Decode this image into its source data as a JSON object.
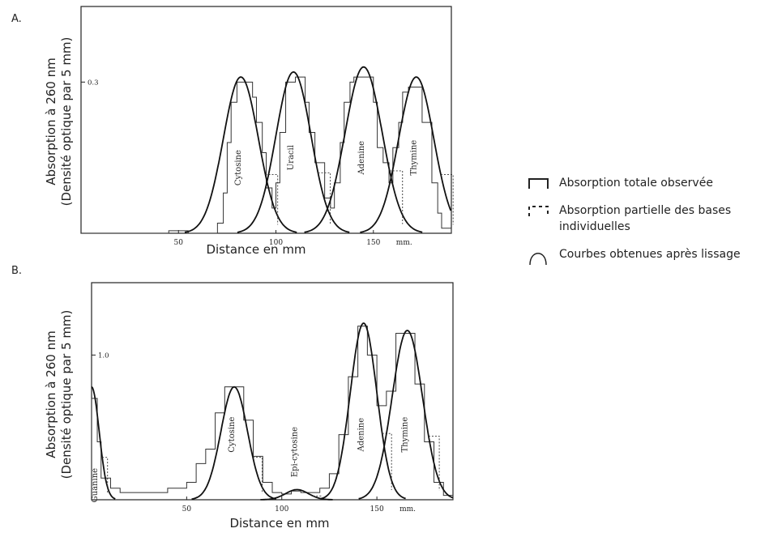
{
  "chart_data": [
    {
      "panel": "A.",
      "type": "line",
      "xlabel": "Distance en mm",
      "ylabel_line1": "Absorption à 260 nm",
      "ylabel_line2": "(Densité optique par 5 mm)",
      "xlim": [
        0,
        190
      ],
      "ylim": [
        0,
        0.45
      ],
      "xticks": [
        {
          "value": 50,
          "label": "50"
        },
        {
          "value": 100,
          "label": "100"
        },
        {
          "value": 150,
          "label": "150"
        }
      ],
      "xunit_label": "mm.",
      "yticks": [
        {
          "value": 0.3,
          "label": "0.3"
        }
      ],
      "peaks": [
        {
          "name": "Cytosine",
          "center": 82,
          "height": 0.31,
          "width": 9
        },
        {
          "name": "Uracil",
          "center": 109,
          "height": 0.32,
          "width": 9
        },
        {
          "name": "Adenine",
          "center": 145,
          "height": 0.33,
          "width": 9.5
        },
        {
          "name": "Thymine",
          "center": 172,
          "height": 0.31,
          "width": 9
        }
      ],
      "series": [
        {
          "name": "Absorption totale observée",
          "style": "step",
          "x": [
            0,
            45,
            50,
            55,
            70,
            73,
            75,
            77,
            80,
            85,
            88,
            90,
            93,
            95,
            98,
            100,
            102,
            105,
            110,
            115,
            117,
            120,
            125,
            128,
            130,
            133,
            135,
            138,
            140,
            145,
            150,
            152,
            155,
            158,
            160,
            163,
            165,
            168,
            172,
            175,
            180,
            183,
            185,
            190
          ],
          "values": [
            0,
            0.005,
            0.005,
            0,
            0.02,
            0.08,
            0.18,
            0.26,
            0.3,
            0.3,
            0.27,
            0.22,
            0.16,
            0.09,
            0.05,
            0.1,
            0.2,
            0.3,
            0.31,
            0.26,
            0.2,
            0.14,
            0.07,
            0.05,
            0.1,
            0.18,
            0.26,
            0.3,
            0.31,
            0.31,
            0.26,
            0.17,
            0.14,
            0.1,
            0.17,
            0.22,
            0.28,
            0.29,
            0.29,
            0.22,
            0.1,
            0.04,
            0.01,
            0.005
          ]
        },
        {
          "name": "Absorption partielle des bases individuelles",
          "style": "dashed-step",
          "values": []
        },
        {
          "name": "Courbes obtenues après lissage",
          "style": "smooth",
          "values": []
        }
      ]
    },
    {
      "panel": "B.",
      "type": "line",
      "xlabel": "Distance en mm",
      "ylabel_line1": "Absorption à 260 nm",
      "ylabel_line2": "(Densité optique par 5 mm)",
      "xlim": [
        0,
        190
      ],
      "ylim": [
        0,
        1.5
      ],
      "xticks": [
        {
          "value": 50,
          "label": "50"
        },
        {
          "value": 100,
          "label": "100"
        },
        {
          "value": 150,
          "label": "150"
        }
      ],
      "xunit_label": "mm.",
      "yticks": [
        {
          "value": 1.0,
          "label": "1.0"
        }
      ],
      "peaks": [
        {
          "name": "Guanine",
          "center": 0,
          "height": 0.78,
          "width": 4
        },
        {
          "name": "Cytosine",
          "center": 75,
          "height": 0.78,
          "width": 7
        },
        {
          "name": "Epi-cytosine",
          "center": 108,
          "height": 0.07,
          "width": 6
        },
        {
          "name": "Adenine",
          "center": 143,
          "height": 1.22,
          "width": 7
        },
        {
          "name": "Thymine",
          "center": 166,
          "height": 1.17,
          "width": 8
        }
      ],
      "series": [
        {
          "name": "Absorption totale observée",
          "style": "step",
          "x": [
            0,
            3,
            5,
            10,
            15,
            20,
            25,
            30,
            35,
            40,
            50,
            55,
            60,
            65,
            70,
            75,
            80,
            85,
            90,
            95,
            100,
            105,
            110,
            115,
            120,
            125,
            130,
            135,
            140,
            145,
            150,
            155,
            160,
            165,
            170,
            175,
            180,
            185,
            190
          ],
          "values": [
            0.7,
            0.4,
            0.15,
            0.08,
            0.05,
            0.05,
            0.05,
            0.05,
            0.05,
            0.08,
            0.12,
            0.25,
            0.35,
            0.6,
            0.78,
            0.78,
            0.55,
            0.3,
            0.12,
            0.05,
            0.04,
            0.06,
            0.05,
            0.05,
            0.08,
            0.18,
            0.45,
            0.85,
            1.2,
            1.0,
            0.65,
            0.75,
            1.15,
            1.15,
            0.8,
            0.4,
            0.12,
            0.03,
            0.01
          ]
        },
        {
          "name": "Absorption partielle des bases individuelles",
          "style": "dashed-step",
          "values": []
        },
        {
          "name": "Courbes obtenues après lissage",
          "style": "smooth",
          "values": []
        }
      ]
    }
  ],
  "legend": [
    {
      "icon": "solid-step-icon",
      "label": "Absorption totale observée"
    },
    {
      "icon": "dashed-step-icon",
      "label": "Absorption partielle des bases individuelles"
    },
    {
      "icon": "arch-curve-icon",
      "label": "Courbes obtenues après lissage"
    }
  ]
}
